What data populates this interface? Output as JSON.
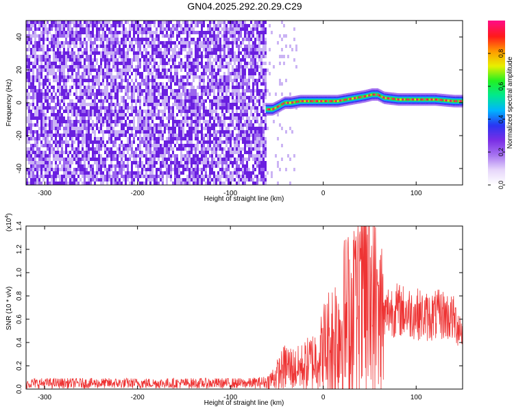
{
  "title": "GN04.2025.292.20.29.C29",
  "chart_data": [
    {
      "type": "heatmap",
      "panel": "spectrogram",
      "xlabel": "Height of straight line (km)",
      "ylabel": "Frequency (Hz)",
      "xlim": [
        -320,
        150
      ],
      "ylim": [
        -50,
        50
      ],
      "xticks": [
        -300,
        -200,
        -100,
        0,
        100
      ],
      "xtick_labels": [
        "-300",
        "-200",
        "-100",
        "0",
        "100"
      ],
      "yticks": [
        -40,
        -20,
        0,
        20,
        40
      ],
      "ytick_labels": [
        "-40",
        "-20",
        "0",
        "20",
        "40"
      ],
      "noise_region_x": [
        -320,
        -62
      ],
      "signal_ridge": {
        "x": [
          -62,
          -55,
          -48,
          -42,
          -35,
          -25,
          -15,
          -5,
          5,
          15,
          25,
          35,
          45,
          52,
          58,
          65,
          80,
          100,
          120,
          140,
          150
        ],
        "freq_hz": [
          -4,
          -4,
          -2,
          0,
          0,
          1,
          1,
          1,
          1,
          1,
          2,
          3,
          4,
          5,
          5,
          3,
          2,
          2,
          2,
          1,
          1
        ]
      },
      "colorbar": {
        "label": "Normalized spectral amplitude",
        "range": [
          0.0,
          1.0
        ],
        "ticks": [
          0.0,
          0.2,
          0.4,
          0.6,
          0.8
        ],
        "tick_labels": [
          "0.0",
          "0.2",
          "0.4",
          "0.6",
          "0.8"
        ]
      },
      "colors": {
        "noise_dark": "#6a1fe0",
        "noise_light": "#cbb4f4",
        "colormap": [
          "#ffffff",
          "#e6d6fb",
          "#a673f0",
          "#7a2ee6",
          "#2a35f2",
          "#00b4ff",
          "#00e890",
          "#22f022",
          "#e8f000",
          "#ff9a00",
          "#ff1a1a",
          "#ff0d80"
        ]
      }
    },
    {
      "type": "line",
      "panel": "snr",
      "xlabel": "Height of straight line (km)",
      "ylabel": "SNR (10 * v/v)",
      "multiplier_label": "(x10",
      "multiplier_exp": "4",
      "multiplier_close": ")",
      "xlim": [
        -320,
        150
      ],
      "ylim": [
        0,
        1.4
      ],
      "xticks": [
        -300,
        -200,
        -100,
        0,
        100
      ],
      "xtick_labels": [
        "-300",
        "-200",
        "-100",
        "0",
        "100"
      ],
      "yticks": [
        0.0,
        0.2,
        0.4,
        0.6,
        0.8,
        1.0,
        1.2,
        1.4
      ],
      "ytick_labels": [
        "0.0",
        "0.2",
        "0.4",
        "0.6",
        "0.8",
        "1.0",
        "1.2",
        "1.4"
      ],
      "envelope": {
        "x": [
          -320,
          -280,
          -240,
          -200,
          -160,
          -120,
          -80,
          -60,
          -50,
          -40,
          -30,
          -20,
          -10,
          0,
          10,
          20,
          30,
          40,
          50,
          55,
          60,
          65,
          70,
          80,
          90,
          100,
          110,
          120,
          130,
          140,
          150
        ],
        "y": [
          0.05,
          0.05,
          0.05,
          0.05,
          0.05,
          0.05,
          0.05,
          0.06,
          0.12,
          0.2,
          0.17,
          0.2,
          0.25,
          0.33,
          0.42,
          0.55,
          0.62,
          0.68,
          0.74,
          0.72,
          0.6,
          0.6,
          0.68,
          0.68,
          0.66,
          0.65,
          0.62,
          0.63,
          0.64,
          0.6,
          0.5
        ]
      },
      "peak": {
        "x": 45,
        "y": 1.4
      },
      "line_color": "#ee3333"
    }
  ]
}
